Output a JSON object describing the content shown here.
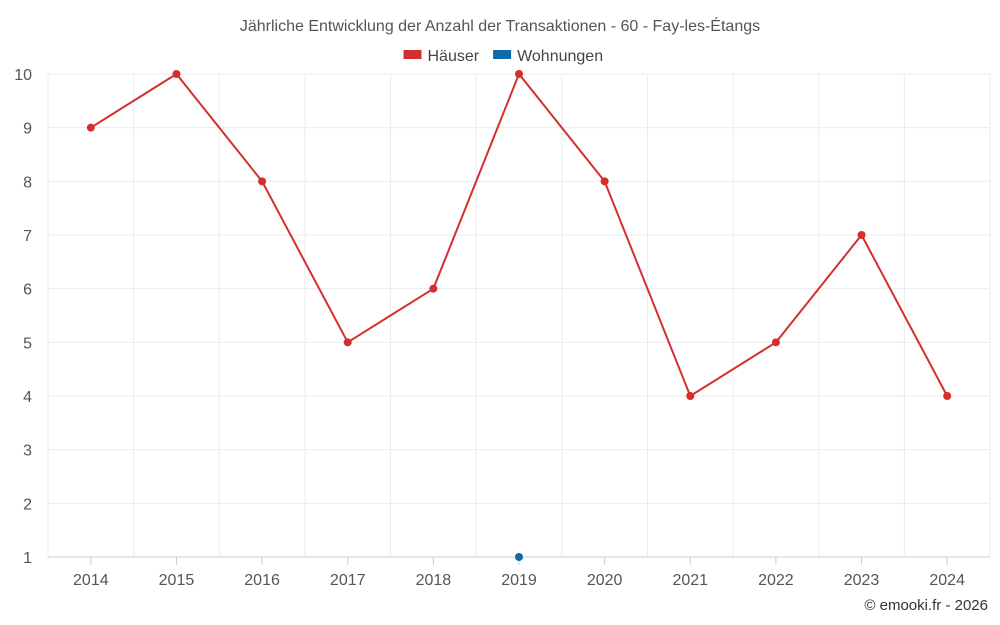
{
  "chart_data": {
    "type": "line",
    "title": "Jährliche Entwicklung der Anzahl der Transaktionen - 60 - Fay-les-Étangs",
    "xlabel": "",
    "ylabel": "",
    "categories": [
      "2014",
      "2015",
      "2016",
      "2017",
      "2018",
      "2019",
      "2020",
      "2021",
      "2022",
      "2023",
      "2024"
    ],
    "ylim": [
      1,
      10
    ],
    "yticks": [
      1,
      2,
      3,
      4,
      5,
      6,
      7,
      8,
      9,
      10
    ],
    "grid": true,
    "legend_position": "top",
    "series": [
      {
        "name": "Häuser",
        "color": "#d32f2f",
        "values": [
          9,
          10,
          8,
          5,
          6,
          10,
          8,
          4,
          5,
          7,
          4
        ]
      },
      {
        "name": "Wohnungen",
        "color": "#0d6aa8",
        "values": [
          null,
          null,
          null,
          null,
          null,
          1,
          null,
          null,
          null,
          null,
          null
        ]
      }
    ]
  },
  "credit": "© emooki.fr - 2026"
}
